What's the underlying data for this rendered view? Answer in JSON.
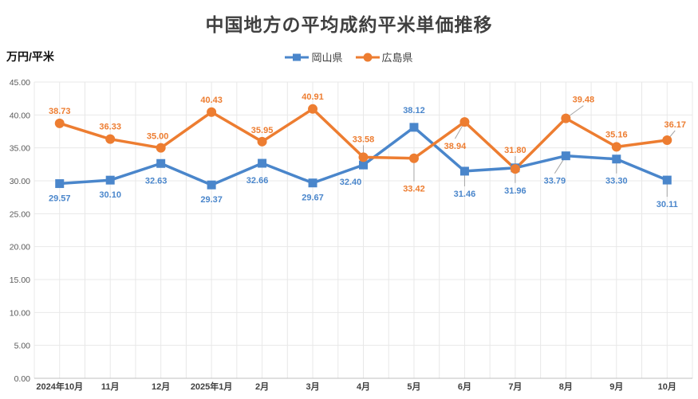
{
  "chart": {
    "title": "中国地方の平均成約平米単価推移",
    "unit_label": "万円/平米"
  },
  "chart_data": {
    "type": "line",
    "title": "中国地方の平均成約平米単価推移",
    "ylabel": "万円/平米",
    "xlabel": "",
    "categories": [
      "2024年10月",
      "11月",
      "12月",
      "2025年1月",
      "2月",
      "3月",
      "4月",
      "5月",
      "6月",
      "7月",
      "8月",
      "9月",
      "10月"
    ],
    "series": [
      {
        "name": "岡山県",
        "color": "#4A86CB",
        "marker": "square",
        "values": [
          29.57,
          30.1,
          32.63,
          29.37,
          32.66,
          29.67,
          32.4,
          38.12,
          31.46,
          31.96,
          33.79,
          33.3,
          30.11
        ],
        "label_offsets": [
          {
            "dx": 0,
            "dy": 18,
            "leader": false
          },
          {
            "dx": 0,
            "dy": 18,
            "leader": false
          },
          {
            "dx": -6,
            "dy": 21,
            "leader": false
          },
          {
            "dx": 0,
            "dy": 18,
            "leader": false
          },
          {
            "dx": -6,
            "dy": 21,
            "leader": false
          },
          {
            "dx": 0,
            "dy": 18,
            "leader": false
          },
          {
            "dx": -16,
            "dy": 21,
            "leader": false
          },
          {
            "dx": 0,
            "dy": -22,
            "leader": false
          },
          {
            "dx": 0,
            "dy": 28,
            "leader": true
          },
          {
            "dx": 0,
            "dy": 28,
            "leader": true
          },
          {
            "dx": -14,
            "dy": 31,
            "leader": true
          },
          {
            "dx": 0,
            "dy": 27,
            "leader": true
          },
          {
            "dx": 0,
            "dy": 30,
            "leader": true
          }
        ]
      },
      {
        "name": "広島県",
        "color": "#ED7D31",
        "marker": "circle",
        "values": [
          38.73,
          36.33,
          35.0,
          40.43,
          35.95,
          40.91,
          33.58,
          33.42,
          38.94,
          31.8,
          39.48,
          35.16,
          36.17
        ],
        "label_offsets": [
          {
            "dx": 0,
            "dy": -16,
            "leader": false
          },
          {
            "dx": 0,
            "dy": -16,
            "leader": false
          },
          {
            "dx": -4,
            "dy": -15,
            "leader": false
          },
          {
            "dx": 0,
            "dy": -16,
            "leader": false
          },
          {
            "dx": 0,
            "dy": -15,
            "leader": false
          },
          {
            "dx": 0,
            "dy": -16,
            "leader": false
          },
          {
            "dx": 0,
            "dy": -23,
            "leader": true
          },
          {
            "dx": 0,
            "dy": 38,
            "leader": true
          },
          {
            "dx": -12,
            "dy": 30,
            "leader": true
          },
          {
            "dx": 0,
            "dy": -24,
            "leader": true
          },
          {
            "dx": 22,
            "dy": -24,
            "leader": true
          },
          {
            "dx": 0,
            "dy": -16,
            "leader": false
          },
          {
            "dx": 10,
            "dy": -20,
            "leader": true
          }
        ]
      }
    ],
    "ylim": [
      0,
      45
    ],
    "ytick_step": 5,
    "ytick_labels": [
      "0.00",
      "5.00",
      "10.00",
      "15.00",
      "20.00",
      "25.00",
      "30.00",
      "35.00",
      "40.00",
      "45.00"
    ],
    "grid": true,
    "vertical_grid_divisions": 26,
    "legend_position": "top",
    "colors": {
      "grid": "#E8E8E8",
      "axis": "#BFBFBF",
      "leader": "#A6A6A6",
      "ytick_text": "#595959",
      "xtick_text": "#404040",
      "title_text": "#404040"
    }
  }
}
